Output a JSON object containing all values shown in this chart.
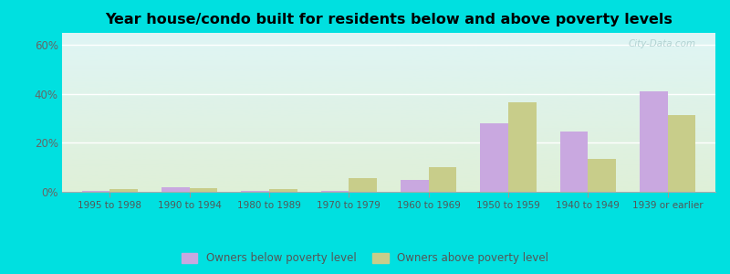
{
  "title": "Year house/condo built for residents below and above poverty levels",
  "categories": [
    "1995 to 1998",
    "1990 to 1994",
    "1980 to 1989",
    "1970 to 1979",
    "1960 to 1969",
    "1950 to 1959",
    "1940 to 1949",
    "1939 or earlier"
  ],
  "below_poverty": [
    0.5,
    2.0,
    0.5,
    0.5,
    5.0,
    28.0,
    24.5,
    41.0
  ],
  "above_poverty": [
    1.0,
    1.5,
    1.0,
    5.5,
    10.0,
    36.5,
    13.5,
    31.5
  ],
  "below_color": "#c9a8e0",
  "above_color": "#c8cd8a",
  "ylim": [
    0,
    65
  ],
  "yticks": [
    0,
    20,
    40,
    60
  ],
  "ytick_labels": [
    "0%",
    "20%",
    "40%",
    "60%"
  ],
  "outer_bg": "#00e0e0",
  "grad_top": "#dff5f5",
  "grad_bottom": "#dff0d8",
  "legend_below_label": "Owners below poverty level",
  "legend_above_label": "Owners above poverty level",
  "watermark": "City-Data.com",
  "bar_width": 0.35,
  "title_fontsize": 11.5
}
